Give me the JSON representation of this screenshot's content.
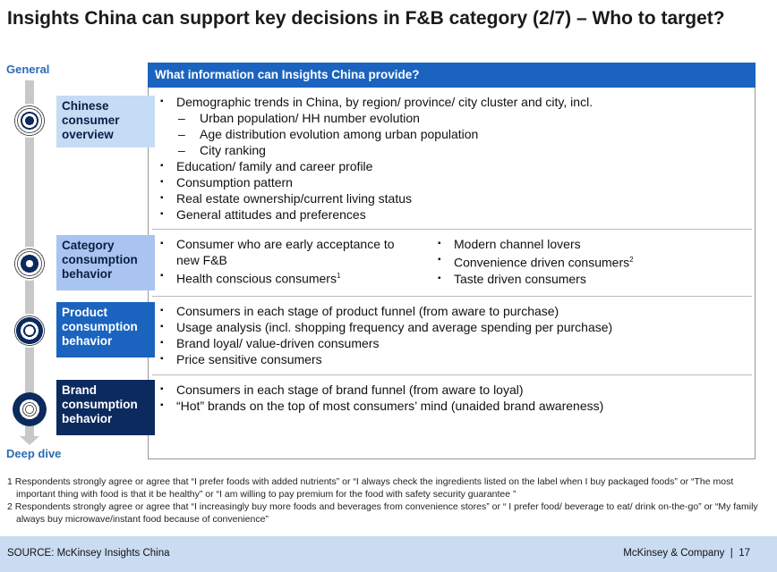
{
  "title": "Insights China can support key decisions in F&B category (2/7) – Who to target?",
  "axis": {
    "top_label": "General",
    "bottom_label": "Deep dive"
  },
  "header": "What information can Insights China provide?",
  "rows": [
    {
      "label": "Chinese consumer overview",
      "color": "#c5dcf5",
      "text_color": "#0b1f44",
      "items": [
        "Demographic trends in China, by region/ province/ city cluster and city, incl.",
        "Urban population/ HH number evolution",
        "Age distribution evolution among urban population",
        "City ranking",
        "Education/ family and career profile",
        "Consumption pattern",
        "Real estate ownership/current living status",
        "General attitudes and preferences"
      ]
    },
    {
      "label": "Category consumption behavior",
      "color": "#a9c4f0",
      "text_color": "#0b1f44",
      "left": [
        "Consumer who are early acceptance to new F&B",
        "Health conscious consumers"
      ],
      "left_sup": "1",
      "right": [
        "Modern channel lovers",
        "Convenience driven consumers",
        "Taste driven consumers"
      ],
      "right_sup": "2"
    },
    {
      "label": "Product consumption behavior",
      "color": "#1a64c0",
      "text_color": "#ffffff",
      "items": [
        "Consumers in each stage of product funnel (from aware to purchase)",
        "Usage analysis (incl. shopping frequency and average spending per purchase)",
        "Brand loyal/ value-driven consumers",
        "Price sensitive consumers"
      ]
    },
    {
      "label": "Brand consumption behavior",
      "color": "#0b2a5e",
      "text_color": "#ffffff",
      "items": [
        "Consumers in each stage of brand funnel (from aware to loyal)",
        "“Hot” brands on the top of most consumers’ mind (unaided brand awareness)"
      ]
    }
  ],
  "footnotes": [
    "1 Respondents strongly agree or agree that “I prefer foods with added nutrients” or “I always check the ingredients listed on the label when I buy packaged foods” or “The most important thing with food is that it be healthy” or “I am willing to pay premium for the food with safety security guarantee ”",
    "2 Respondents strongly agree or agree that “I increasingly buy more foods and beverages from convenience stores” or “ I prefer food/ beverage to eat/ drink on-the-go” or “My family always buy microwave/instant food because of convenience”"
  ],
  "footer": {
    "source": "SOURCE: McKinsey Insights China",
    "company": "McKinsey & Company",
    "page": "17"
  }
}
